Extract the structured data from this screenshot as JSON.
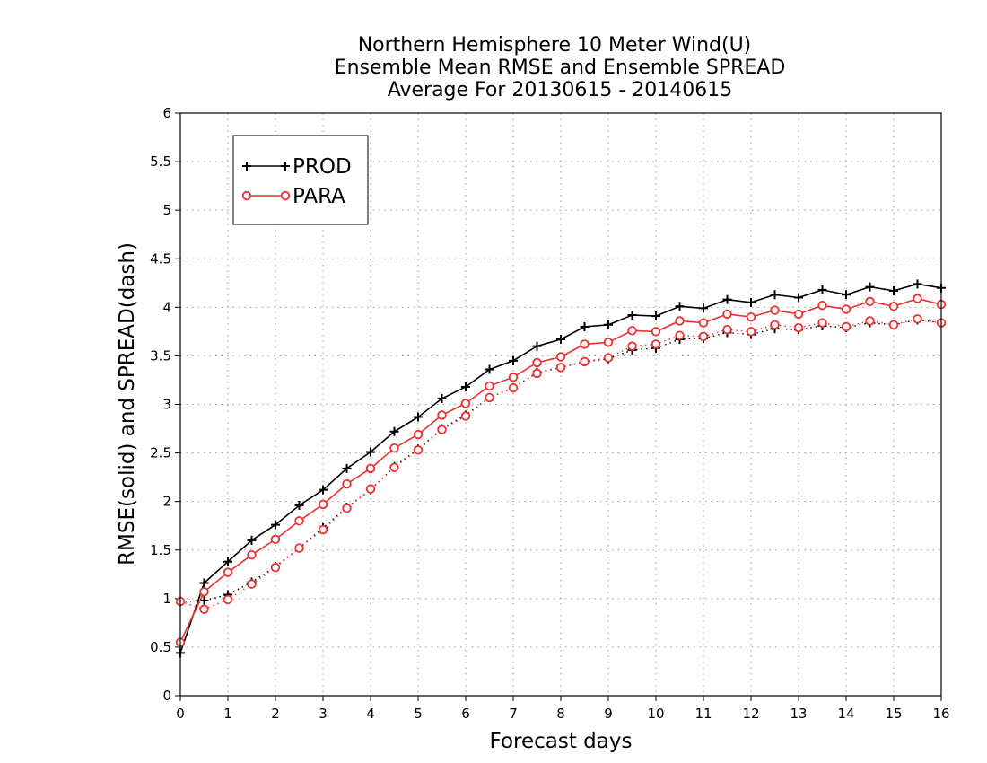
{
  "chart_data": {
    "type": "line",
    "title_lines": [
      "Northern Hemisphere 10 Meter Wind(U)",
      "Ensemble Mean RMSE and Ensemble SPREAD",
      "Average For 20130615 - 20140615"
    ],
    "xlabel": "Forecast days",
    "ylabel": "RMSE(solid) and SPREAD(dash)",
    "xlim": [
      0,
      16
    ],
    "ylim": [
      0,
      6
    ],
    "x_ticks": [
      "0",
      "1",
      "2",
      "3",
      "4",
      "5",
      "6",
      "7",
      "8",
      "9",
      "10",
      "11",
      "12",
      "13",
      "14",
      "15",
      "16"
    ],
    "y_ticks": [
      "0",
      "0.5",
      "1",
      "1.5",
      "2",
      "2.5",
      "3",
      "3.5",
      "4",
      "4.5",
      "5",
      "5.5",
      "6"
    ],
    "grid": true,
    "legend_position": "top-left",
    "x": [
      0,
      0.5,
      1,
      1.5,
      2,
      2.5,
      3,
      3.5,
      4,
      4.5,
      5,
      5.5,
      6,
      6.5,
      7,
      7.5,
      8,
      8.5,
      9,
      9.5,
      10,
      10.5,
      11,
      11.5,
      12,
      12.5,
      13,
      13.5,
      14,
      14.5,
      15,
      15.5,
      16
    ],
    "series": [
      {
        "name": "PROD",
        "color": "#000000",
        "marker": "plus",
        "rmse": [
          0.44,
          1.16,
          1.38,
          1.6,
          1.76,
          1.96,
          2.12,
          2.34,
          2.51,
          2.72,
          2.87,
          3.06,
          3.18,
          3.36,
          3.45,
          3.6,
          3.67,
          3.8,
          3.82,
          3.92,
          3.91,
          4.01,
          3.99,
          4.08,
          4.05,
          4.13,
          4.1,
          4.18,
          4.13,
          4.21,
          4.17,
          4.24,
          4.2
        ],
        "spread": [
          0.97,
          0.98,
          1.04,
          1.17,
          1.33,
          1.52,
          1.73,
          1.94,
          2.12,
          2.36,
          2.54,
          2.75,
          2.89,
          3.07,
          3.17,
          3.33,
          3.38,
          3.44,
          3.47,
          3.56,
          3.58,
          3.67,
          3.68,
          3.74,
          3.72,
          3.78,
          3.77,
          3.81,
          3.79,
          3.84,
          3.82,
          3.87,
          3.84
        ]
      },
      {
        "name": "PARA",
        "color": "#ee3030",
        "marker": "circle",
        "rmse": [
          0.55,
          1.07,
          1.27,
          1.45,
          1.61,
          1.8,
          1.97,
          2.18,
          2.34,
          2.55,
          2.69,
          2.89,
          3.01,
          3.19,
          3.28,
          3.43,
          3.49,
          3.62,
          3.64,
          3.76,
          3.75,
          3.86,
          3.84,
          3.93,
          3.9,
          3.97,
          3.93,
          4.02,
          3.98,
          4.06,
          4.01,
          4.09,
          4.03
        ],
        "spread": [
          0.97,
          0.89,
          0.99,
          1.15,
          1.32,
          1.52,
          1.71,
          1.93,
          2.13,
          2.35,
          2.53,
          2.74,
          2.88,
          3.07,
          3.17,
          3.32,
          3.38,
          3.44,
          3.48,
          3.6,
          3.62,
          3.71,
          3.7,
          3.77,
          3.75,
          3.82,
          3.79,
          3.84,
          3.8,
          3.86,
          3.82,
          3.88,
          3.84
        ]
      }
    ]
  }
}
